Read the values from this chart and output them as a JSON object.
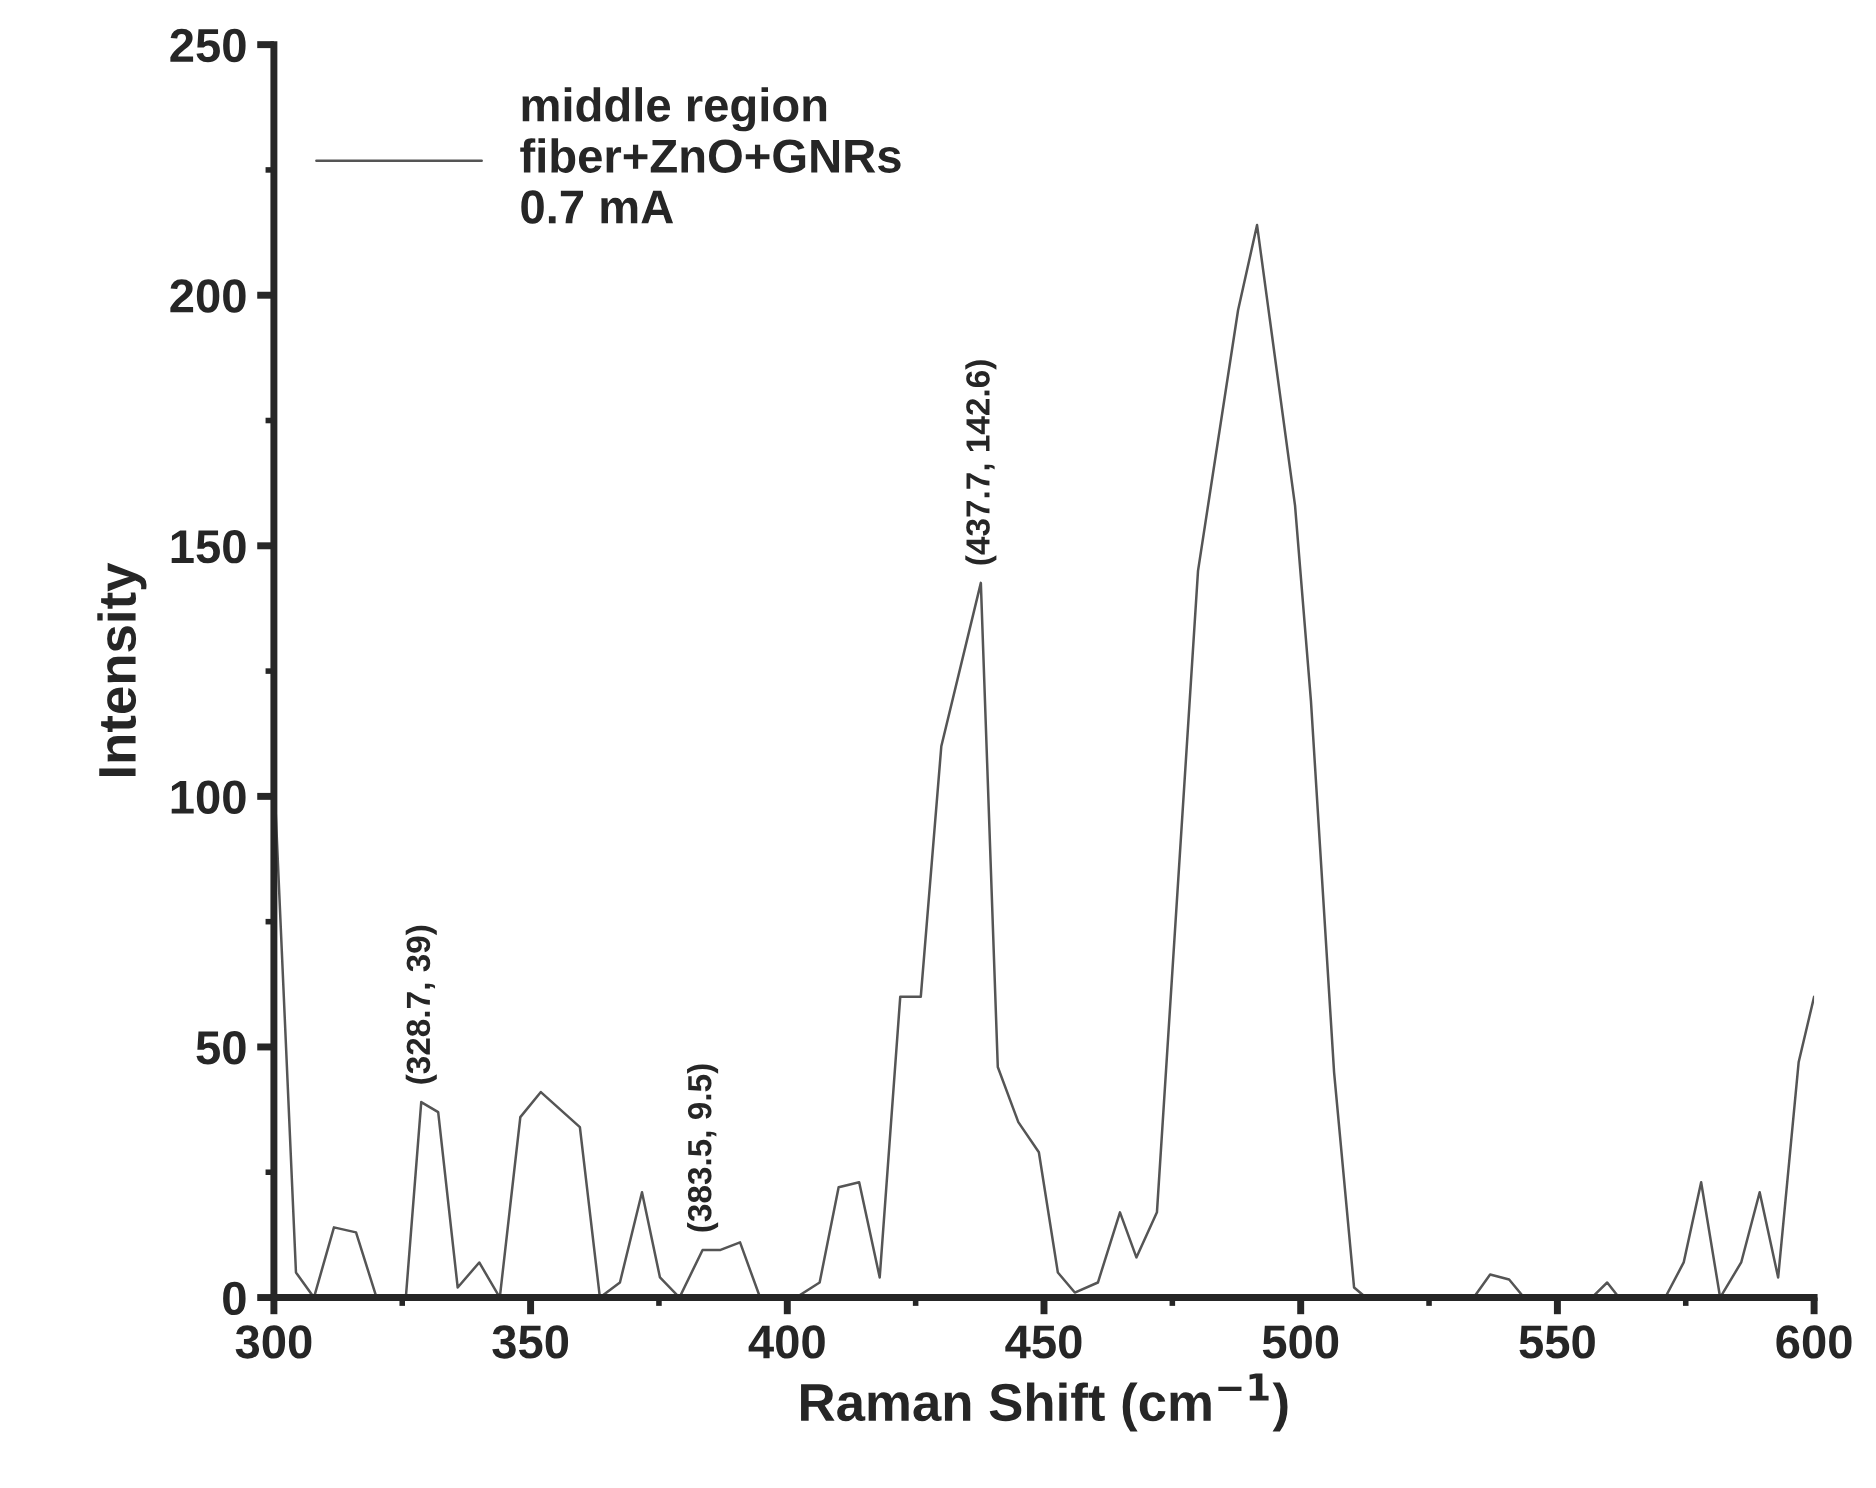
{
  "chart_data": {
    "type": "line",
    "xlabel": "Raman Shift (cm$^{−1}$)",
    "ylabel": "Intensity",
    "xlim": [
      300,
      600
    ],
    "ylim": [
      0,
      250
    ],
    "xticks": [
      300,
      350,
      400,
      450,
      500,
      550,
      600
    ],
    "yticks": [
      0,
      50,
      100,
      150,
      200,
      250
    ],
    "grid": false,
    "legend": "top left",
    "marker": "none",
    "line_style": "solid",
    "series": [
      {
        "name": "middle region\nfiber+ZnO+GNRs\n0.7 mA",
        "color": "#555555",
        "x": [
          300,
          304.3,
          307.8,
          311.7,
          316,
          320,
          325.7,
          328.7,
          332,
          335.8,
          340,
          344,
          348,
          352,
          359.6,
          363.5,
          367.4,
          371.7,
          375.2,
          379,
          383.5,
          387,
          390.8,
          394.7,
          401.7,
          406.3,
          410,
          414,
          418,
          422,
          426,
          430,
          437.7,
          441,
          445,
          449,
          452.7,
          456,
          460.5,
          464.8,
          468,
          472,
          480,
          487.8,
          491.5,
          498.9,
          502,
          506.5,
          510.4,
          512.7,
          533.7,
          536.9,
          540.6,
          543.5,
          556.7,
          559.7,
          562,
          571,
          574.6,
          578,
          581.7,
          585.8,
          589.4,
          593,
          597,
          600
        ],
        "values": [
          105,
          5,
          0,
          14,
          13,
          0,
          0,
          39,
          37,
          2,
          7,
          0,
          36,
          41,
          34,
          0,
          3,
          21,
          4,
          0,
          9.5,
          9.5,
          11,
          0,
          0,
          3,
          22,
          23,
          4,
          60,
          60,
          110,
          142.6,
          46,
          35,
          29,
          5,
          1,
          3,
          17,
          8,
          17,
          145,
          197,
          214,
          158,
          119,
          45,
          2,
          0,
          0,
          4.6,
          3.6,
          0,
          0,
          3,
          0,
          0,
          7,
          23,
          0,
          7,
          21,
          4,
          47,
          60
        ]
      }
    ],
    "annotations": [
      {
        "text": "(328.7, 39)",
        "x": 328.7,
        "y": 39
      },
      {
        "text": "(383.5, 9.5)",
        "x": 383.5,
        "y": 9.5
      },
      {
        "text": "(437.7, 142.6)",
        "x": 437.7,
        "y": 142.6
      }
    ]
  }
}
